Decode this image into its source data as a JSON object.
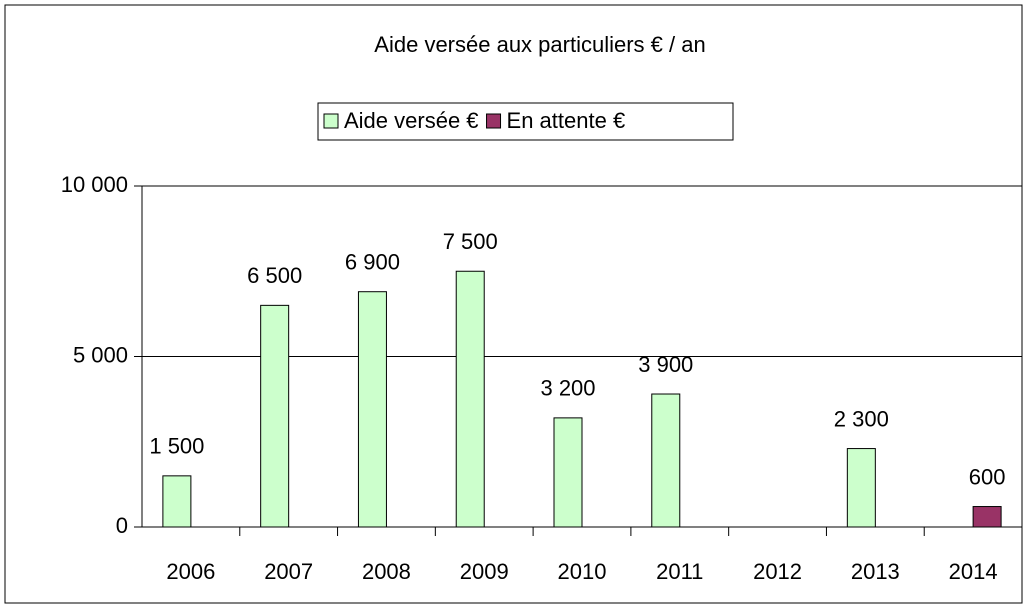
{
  "chart_data": {
    "type": "bar",
    "title": "Aide versée aux particuliers € / an",
    "categories": [
      "2006",
      "2007",
      "2008",
      "2009",
      "2010",
      "2011",
      "2012",
      "2013",
      "2014"
    ],
    "series": [
      {
        "name": "Aide versée €",
        "color": "#ccffcc",
        "values": [
          1500,
          6500,
          6900,
          7500,
          3200,
          3900,
          null,
          2300,
          null
        ],
        "value_labels": [
          "1 500",
          "6 500",
          "6 900",
          "7 500",
          "3 200",
          "3 900",
          null,
          "2 300",
          null
        ]
      },
      {
        "name": "En attente €",
        "color": "#993366",
        "values": [
          null,
          null,
          null,
          null,
          null,
          null,
          null,
          null,
          600
        ],
        "value_labels": [
          null,
          null,
          null,
          null,
          null,
          null,
          null,
          null,
          "600"
        ]
      }
    ],
    "ylim": [
      0,
      10000
    ],
    "yticks": [
      0,
      {
        "value": 5000,
        "label": "5 000"
      },
      {
        "value": 10000,
        "label": "10 000"
      }
    ],
    "grid": true,
    "legend": "top"
  }
}
